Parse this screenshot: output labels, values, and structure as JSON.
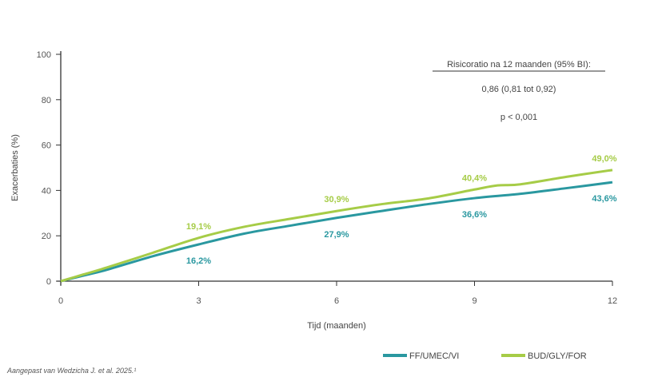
{
  "chart_data": {
    "type": "line",
    "xlabel": "Tijd (maanden)",
    "ylabel": "Exacerbaties (%)",
    "xlim": [
      0,
      12
    ],
    "ylim": [
      0,
      100
    ],
    "xticks": [
      "0",
      "3",
      "6",
      "9",
      "12"
    ],
    "yticks": [
      "0",
      "20",
      "40",
      "60",
      "80",
      "100"
    ],
    "grid": false,
    "legend_position": "bottom-right",
    "series": [
      {
        "name": "FF/UMEC/VI",
        "color": "#2a98a0",
        "x": [
          0,
          0.5,
          1,
          2,
          3,
          4,
          5,
          6,
          7,
          8,
          9,
          10,
          11,
          12
        ],
        "y": [
          0,
          2.5,
          5,
          11,
          16.2,
          21,
          24.5,
          27.9,
          31,
          34,
          36.6,
          38.5,
          41,
          43.6
        ],
        "labels": [
          {
            "x": 3,
            "text": "16,2%"
          },
          {
            "x": 6,
            "text": "27,9%"
          },
          {
            "x": 9,
            "text": "36,6%"
          },
          {
            "x": 12,
            "text": "43,6%"
          }
        ]
      },
      {
        "name": "BUD/GLY/FOR",
        "color": "#a6cc47",
        "x": [
          0,
          0.5,
          1,
          2,
          3,
          4,
          5,
          6,
          7,
          8,
          9,
          9.5,
          10,
          11,
          12
        ],
        "y": [
          0,
          3,
          6,
          12.5,
          19.1,
          24,
          27.5,
          30.9,
          34,
          36.5,
          40.4,
          42.2,
          42.7,
          46,
          49.0
        ],
        "labels": [
          {
            "x": 3,
            "text": "19,1%"
          },
          {
            "x": 6,
            "text": "30,9%"
          },
          {
            "x": 9,
            "text": "40,4%"
          },
          {
            "x": 12,
            "text": "49,0%"
          }
        ]
      }
    ],
    "annotation": {
      "title": "Risicoratio na 12 maanden (95% BI):",
      "ratio": "0,86 (0,81 tot 0,92)",
      "p": "p < 0,001"
    }
  },
  "footnote": "Aangepast van Wedzicha J. et al. 2025.¹"
}
